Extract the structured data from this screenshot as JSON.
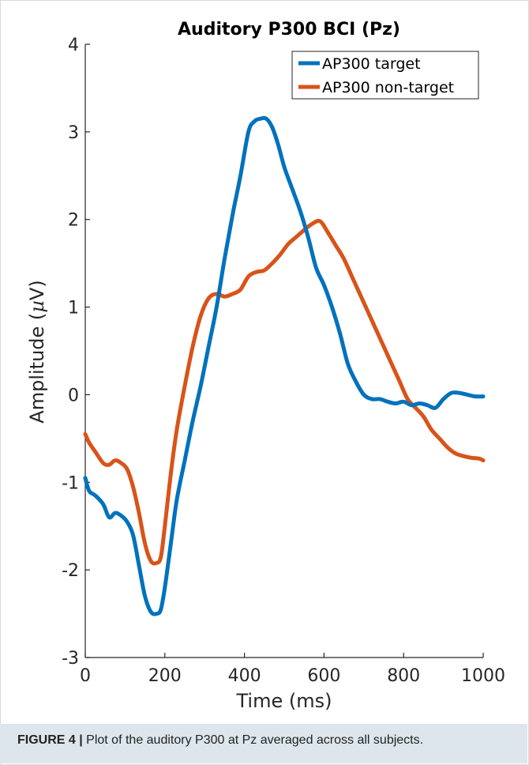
{
  "chart_data": {
    "type": "line",
    "title": "Auditory P300 BCI (Pz)",
    "xlabel": "Time (ms)",
    "ylabel_prefix": "Amplitude (",
    "ylabel_mu": "µ",
    "ylabel_suffix": "V)",
    "xlim": [
      0,
      1000
    ],
    "ylim": [
      -3,
      4
    ],
    "x_ticks": [
      0,
      200,
      400,
      600,
      800,
      1000
    ],
    "x_tick_labels": [
      "0",
      "200",
      "400",
      "600",
      "800",
      "1000"
    ],
    "y_ticks": [
      -3,
      -2,
      -1,
      0,
      1,
      2,
      3,
      4
    ],
    "y_tick_labels": [
      "-3",
      "-2",
      "-1",
      "0",
      "1",
      "2",
      "3",
      "4"
    ],
    "grid": false,
    "legend_position": "top-right",
    "series": [
      {
        "name": "AP300 target",
        "color": "#0072BD",
        "x": [
          0,
          10,
          25,
          45,
          60,
          75,
          90,
          105,
          120,
          135,
          150,
          165,
          180,
          190,
          200,
          215,
          230,
          250,
          270,
          290,
          310,
          330,
          350,
          370,
          390,
          410,
          425,
          440,
          455,
          470,
          485,
          500,
          520,
          540,
          560,
          580,
          600,
          620,
          640,
          660,
          680,
          700,
          720,
          740,
          760,
          780,
          800,
          820,
          840,
          860,
          880,
          900,
          920,
          940,
          960,
          980,
          1000
        ],
        "y": [
          -0.95,
          -1.1,
          -1.15,
          -1.25,
          -1.4,
          -1.35,
          -1.38,
          -1.45,
          -1.6,
          -1.95,
          -2.3,
          -2.48,
          -2.5,
          -2.45,
          -2.2,
          -1.7,
          -1.2,
          -0.75,
          -0.3,
          0.1,
          0.55,
          1.0,
          1.55,
          2.05,
          2.5,
          3.0,
          3.12,
          3.15,
          3.15,
          3.05,
          2.85,
          2.6,
          2.35,
          2.1,
          1.8,
          1.45,
          1.25,
          1.0,
          0.7,
          0.35,
          0.15,
          0.0,
          -0.05,
          -0.05,
          -0.08,
          -0.1,
          -0.08,
          -0.12,
          -0.1,
          -0.12,
          -0.15,
          -0.05,
          0.02,
          0.02,
          0.0,
          -0.02,
          -0.02
        ]
      },
      {
        "name": "AP300 non-target",
        "color": "#D95319",
        "x": [
          0,
          10,
          25,
          45,
          60,
          75,
          90,
          105,
          120,
          135,
          150,
          165,
          180,
          190,
          200,
          215,
          230,
          250,
          270,
          290,
          310,
          330,
          350,
          370,
          390,
          410,
          430,
          450,
          470,
          490,
          510,
          530,
          550,
          570,
          590,
          610,
          630,
          650,
          670,
          690,
          710,
          730,
          750,
          770,
          790,
          810,
          830,
          850,
          870,
          890,
          910,
          930,
          950,
          970,
          990,
          1000
        ],
        "y": [
          -0.45,
          -0.55,
          -0.65,
          -0.78,
          -0.8,
          -0.75,
          -0.78,
          -0.85,
          -1.05,
          -1.35,
          -1.7,
          -1.9,
          -1.92,
          -1.85,
          -1.5,
          -0.9,
          -0.4,
          0.1,
          0.55,
          0.9,
          1.1,
          1.15,
          1.12,
          1.15,
          1.2,
          1.35,
          1.4,
          1.42,
          1.5,
          1.6,
          1.72,
          1.8,
          1.88,
          1.95,
          1.98,
          1.85,
          1.7,
          1.55,
          1.35,
          1.15,
          0.95,
          0.75,
          0.55,
          0.35,
          0.15,
          -0.05,
          -0.15,
          -0.25,
          -0.4,
          -0.5,
          -0.6,
          -0.67,
          -0.7,
          -0.72,
          -0.73,
          -0.75
        ]
      }
    ]
  },
  "caption": {
    "label": "FIGURE 4 |",
    "text": " Plot of the auditory P300 at Pz averaged across all subjects."
  }
}
